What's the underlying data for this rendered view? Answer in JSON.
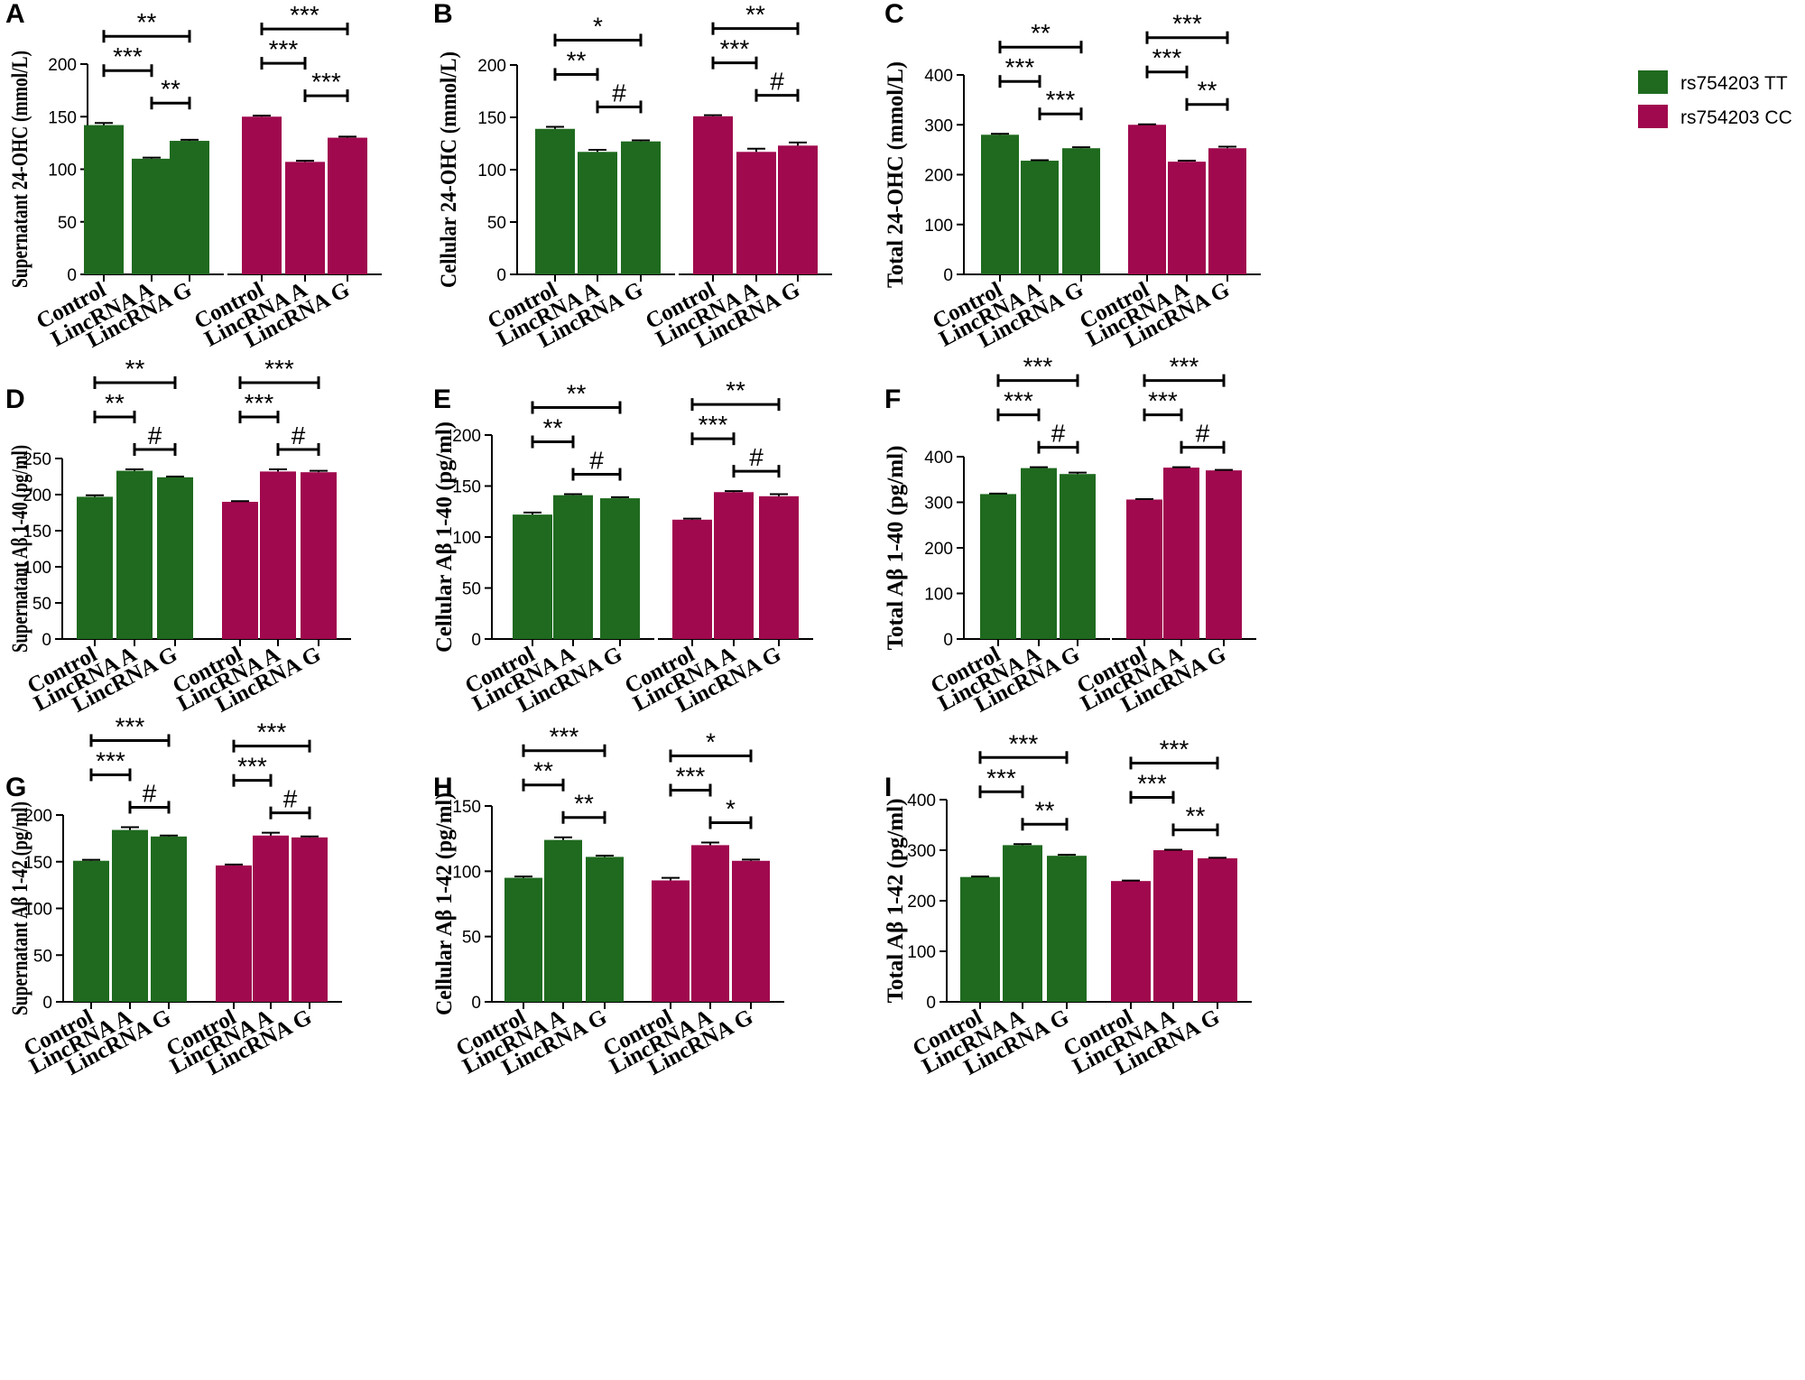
{
  "legend": [
    {
      "label": "rs754203 TT",
      "color": "#1f6a1f"
    },
    {
      "label": "rs754203 CC",
      "color": "#a0094e"
    }
  ],
  "chart_data": [
    {
      "panel": "A",
      "type": "bar",
      "ylabel": "Supernatant 24-OHC (mmol/L)",
      "ylim": [
        0,
        200
      ],
      "yticks": [
        0,
        50,
        100,
        150,
        200
      ],
      "categories": [
        "Control",
        "LincRNA A",
        "LincRNA G"
      ],
      "series": [
        {
          "name": "rs754203 TT",
          "values": [
            142,
            110,
            127
          ],
          "errors": [
            2,
            1,
            1
          ]
        },
        {
          "name": "rs754203 CC",
          "values": [
            150,
            107,
            130
          ],
          "errors": [
            1,
            1,
            1
          ]
        }
      ],
      "significance": [
        [
          [
            "***",
            "**",
            "**"
          ]
        ],
        [
          [
            "***",
            "***",
            "***"
          ]
        ]
      ]
    },
    {
      "panel": "B",
      "type": "bar",
      "ylabel": "Cellular 24-OHC (mmol/L)",
      "ylim": [
        0,
        200
      ],
      "yticks": [
        0,
        50,
        100,
        150,
        200
      ],
      "categories": [
        "Control",
        "LincRNA A",
        "LincRNA G"
      ],
      "series": [
        {
          "name": "rs754203 TT",
          "values": [
            139,
            117,
            127
          ],
          "errors": [
            2,
            2,
            1
          ]
        },
        {
          "name": "rs754203 CC",
          "values": [
            151,
            117,
            123
          ],
          "errors": [
            1,
            3,
            3
          ]
        }
      ],
      "significance": [
        [
          [
            "**",
            "#",
            "*"
          ]
        ],
        [
          [
            "***",
            "#",
            "**"
          ]
        ]
      ]
    },
    {
      "panel": "C",
      "type": "bar",
      "ylabel": "Total 24-OHC (mmol/L)",
      "ylim": [
        0,
        400
      ],
      "yticks": [
        0,
        100,
        200,
        300,
        400
      ],
      "categories": [
        "Control",
        "LincRNA A",
        "LincRNA G"
      ],
      "series": [
        {
          "name": "rs754203 TT",
          "values": [
            280,
            228,
            253
          ],
          "errors": [
            2,
            1,
            2
          ]
        },
        {
          "name": "rs754203 CC",
          "values": [
            300,
            226,
            253
          ],
          "errors": [
            1,
            2,
            3
          ]
        }
      ],
      "significance": [
        [
          [
            "***",
            "***",
            "**"
          ]
        ],
        [
          [
            "***",
            "**",
            "***"
          ]
        ]
      ]
    },
    {
      "panel": "D",
      "type": "bar",
      "ylabel": "Supernatant Aβ 1-40 (pg/ml)",
      "ylim": [
        0,
        250
      ],
      "yticks": [
        0,
        50,
        100,
        150,
        200,
        250
      ],
      "categories": [
        "Control",
        "LincRNA A",
        "LincRNA G"
      ],
      "series": [
        {
          "name": "rs754203 TT",
          "values": [
            197,
            233,
            224
          ],
          "errors": [
            2,
            2,
            1
          ]
        },
        {
          "name": "rs754203 CC",
          "values": [
            190,
            232,
            231
          ],
          "errors": [
            1,
            3,
            2
          ]
        }
      ],
      "significance": [
        [
          [
            "**",
            "#",
            "**"
          ]
        ],
        [
          [
            "***",
            "#",
            "***"
          ]
        ]
      ]
    },
    {
      "panel": "E",
      "type": "bar",
      "ylabel": "Cellular Aβ 1-40 (pg/ml)",
      "ylim": [
        0,
        200
      ],
      "yticks": [
        0,
        50,
        100,
        150,
        200
      ],
      "categories": [
        "Control",
        "LincRNA A",
        "LincRNA G"
      ],
      "series": [
        {
          "name": "rs754203 TT",
          "values": [
            122,
            141,
            138
          ],
          "errors": [
            2,
            1,
            1
          ]
        },
        {
          "name": "rs754203 CC",
          "values": [
            117,
            144,
            140
          ],
          "errors": [
            1,
            1,
            2
          ]
        }
      ],
      "significance": [
        [
          [
            "**",
            "#",
            "**"
          ]
        ],
        [
          [
            "***",
            "#",
            "**"
          ]
        ]
      ]
    },
    {
      "panel": "F",
      "type": "bar",
      "ylabel": "Total Aβ 1-40 (pg/ml)",
      "ylim": [
        0,
        400
      ],
      "yticks": [
        0,
        100,
        200,
        300,
        400
      ],
      "categories": [
        "Control",
        "LincRNA A",
        "LincRNA G"
      ],
      "series": [
        {
          "name": "rs754203 TT",
          "values": [
            318,
            375,
            362
          ],
          "errors": [
            1,
            2,
            3
          ]
        },
        {
          "name": "rs754203 CC",
          "values": [
            306,
            376,
            370
          ],
          "errors": [
            1,
            1,
            1
          ]
        }
      ],
      "significance": [
        [
          [
            "***",
            "#",
            "***"
          ]
        ],
        [
          [
            "***",
            "#",
            "***"
          ]
        ]
      ]
    },
    {
      "panel": "G",
      "type": "bar",
      "ylabel": "Supernatant Aβ 1-42 (pg/ml)",
      "ylim": [
        0,
        200
      ],
      "yticks": [
        0,
        50,
        100,
        150,
        200
      ],
      "categories": [
        "Control",
        "LincRNA A",
        "LincRNA G"
      ],
      "series": [
        {
          "name": "rs754203 TT",
          "values": [
            151,
            184,
            177
          ],
          "errors": [
            1,
            3,
            1
          ]
        },
        {
          "name": "rs754203 CC",
          "values": [
            146,
            178,
            176
          ],
          "errors": [
            1,
            3,
            1
          ]
        }
      ],
      "significance": [
        [
          [
            "***",
            "#",
            "***"
          ]
        ],
        [
          [
            "***",
            "#",
            "***"
          ]
        ]
      ]
    },
    {
      "panel": "H",
      "type": "bar",
      "ylabel": "Cellular Aβ 1-42 (pg/ml)",
      "ylim": [
        0,
        150
      ],
      "yticks": [
        0,
        50,
        100,
        150
      ],
      "categories": [
        "Control",
        "LincRNA A",
        "LincRNA G"
      ],
      "series": [
        {
          "name": "rs754203 TT",
          "values": [
            95,
            124,
            111
          ],
          "errors": [
            1,
            2,
            1
          ]
        },
        {
          "name": "rs754203 CC",
          "values": [
            93,
            120,
            108
          ],
          "errors": [
            2,
            2,
            1
          ]
        }
      ],
      "significance": [
        [
          [
            "**",
            "**",
            "***"
          ]
        ],
        [
          [
            "***",
            "*",
            "*"
          ]
        ]
      ]
    },
    {
      "panel": "I",
      "type": "bar",
      "ylabel": "Total Aβ 1-42 (pg/ml)",
      "ylim": [
        0,
        400
      ],
      "yticks": [
        0,
        100,
        200,
        300,
        400
      ],
      "categories": [
        "Control",
        "LincRNA A",
        "LincRNA G"
      ],
      "series": [
        {
          "name": "rs754203 TT",
          "values": [
            247,
            310,
            289
          ],
          "errors": [
            1,
            2,
            2
          ]
        },
        {
          "name": "rs754203 CC",
          "values": [
            239,
            300,
            284
          ],
          "errors": [
            1,
            1,
            1
          ]
        }
      ],
      "significance": [
        [
          [
            "***",
            "**",
            "***"
          ]
        ],
        [
          [
            "***",
            "**",
            "***"
          ]
        ]
      ]
    }
  ]
}
